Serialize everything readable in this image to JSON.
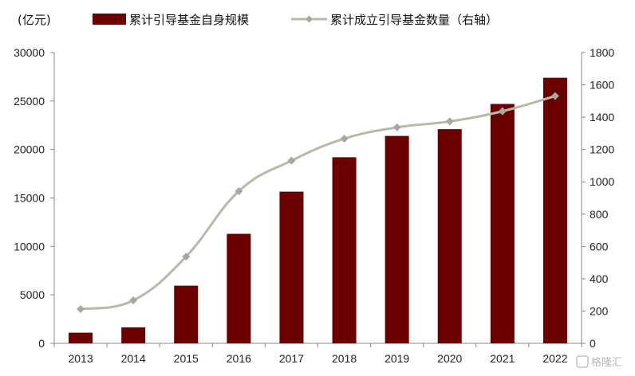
{
  "chart_data": {
    "type": "bar",
    "unit_label": "(亿元)",
    "categories": [
      "2013",
      "2014",
      "2015",
      "2016",
      "2017",
      "2018",
      "2019",
      "2020",
      "2021",
      "2022"
    ],
    "series": [
      {
        "name": "累计引导基金自身规模",
        "type": "bar",
        "axis": "left",
        "color": "#6b0000",
        "values": [
          1100,
          1650,
          5950,
          11300,
          15650,
          19200,
          21400,
          22100,
          24700,
          27400
        ]
      },
      {
        "name": "累计成立引导基金数量（右轴）",
        "type": "line",
        "axis": "right",
        "color": "#b8b8ab",
        "marker": "diamond",
        "values": [
          212,
          266,
          537,
          942,
          1131,
          1267,
          1337,
          1374,
          1437,
          1531
        ]
      }
    ],
    "y_left": {
      "min": 0,
      "max": 30000,
      "ticks": [
        0,
        5000,
        10000,
        15000,
        20000,
        25000,
        30000
      ]
    },
    "y_right": {
      "min": 0,
      "max": 1800,
      "ticks": [
        0,
        200,
        400,
        600,
        800,
        1000,
        1200,
        1400,
        1600,
        1800
      ]
    },
    "legend_position": "top",
    "grid": false
  },
  "watermark": "格隆汇"
}
